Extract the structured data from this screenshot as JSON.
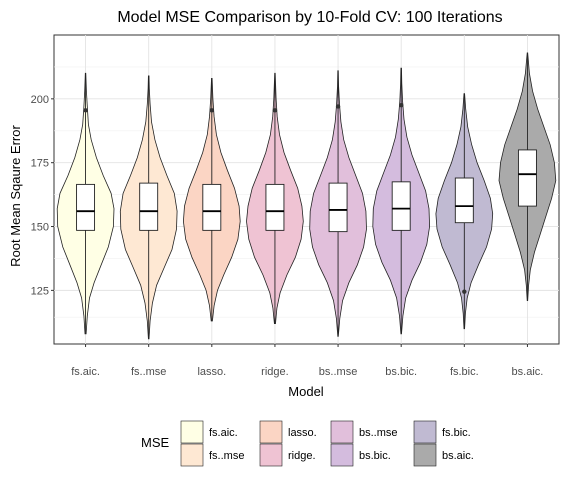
{
  "chart_data": {
    "type": "violin",
    "title": "Model MSE Comparison by 10-Fold CV: 100 Iterations",
    "xlabel": "Model",
    "ylabel": "Root Mean Sqaure Error",
    "ylim": [
      104,
      225
    ],
    "yticks": [
      125,
      150,
      175,
      200
    ],
    "grid": true,
    "legend": {
      "title": "MSE",
      "position": "bottom",
      "columns": 4
    },
    "categories": [
      "fs.aic.",
      "fs..mse",
      "lasso.",
      "ridge.",
      "bs..mse",
      "bs.bic.",
      "fs.bic.",
      "bs.aic."
    ],
    "series": [
      {
        "name": "fs.aic.",
        "color": "#FFFFE5",
        "min": 108,
        "q1": 148.5,
        "median": 156,
        "q3": 166.5,
        "max": 210,
        "outliers": [
          195.5
        ],
        "density": [
          [
            108,
            0.02
          ],
          [
            115,
            0.06
          ],
          [
            122,
            0.14
          ],
          [
            128,
            0.3
          ],
          [
            135,
            0.55
          ],
          [
            142,
            0.8
          ],
          [
            150,
            0.98
          ],
          [
            157,
            1.0
          ],
          [
            163,
            0.9
          ],
          [
            170,
            0.62
          ],
          [
            177,
            0.38
          ],
          [
            184,
            0.2
          ],
          [
            190,
            0.1
          ],
          [
            197,
            0.06
          ],
          [
            203,
            0.03
          ],
          [
            210,
            0.01
          ]
        ]
      },
      {
        "name": "fs..mse",
        "color": "#FEE8D3",
        "min": 106,
        "q1": 148.5,
        "median": 156,
        "q3": 167,
        "max": 209,
        "outliers": [],
        "density": [
          [
            106,
            0.01
          ],
          [
            113,
            0.05
          ],
          [
            120,
            0.13
          ],
          [
            127,
            0.28
          ],
          [
            134,
            0.55
          ],
          [
            141,
            0.82
          ],
          [
            149,
            0.98
          ],
          [
            156,
            1.0
          ],
          [
            163,
            0.9
          ],
          [
            170,
            0.64
          ],
          [
            177,
            0.4
          ],
          [
            184,
            0.22
          ],
          [
            191,
            0.1
          ],
          [
            198,
            0.05
          ],
          [
            204,
            0.02
          ],
          [
            209,
            0.01
          ]
        ]
      },
      {
        "name": "lasso.",
        "color": "#FBD5C4",
        "min": 113,
        "q1": 148.5,
        "median": 156,
        "q3": 166.5,
        "max": 208,
        "outliers": [
          195.5
        ],
        "density": [
          [
            113,
            0.02
          ],
          [
            119,
            0.08
          ],
          [
            125,
            0.2
          ],
          [
            131,
            0.42
          ],
          [
            138,
            0.7
          ],
          [
            145,
            0.92
          ],
          [
            152,
            1.0
          ],
          [
            158,
            0.96
          ],
          [
            165,
            0.8
          ],
          [
            172,
            0.55
          ],
          [
            179,
            0.32
          ],
          [
            186,
            0.16
          ],
          [
            193,
            0.08
          ],
          [
            200,
            0.04
          ],
          [
            208,
            0.01
          ]
        ]
      },
      {
        "name": "ridge.",
        "color": "#EFC3D3",
        "min": 112,
        "q1": 148.5,
        "median": 156,
        "q3": 166.5,
        "max": 210,
        "outliers": [
          195.5
        ],
        "density": [
          [
            112,
            0.02
          ],
          [
            118,
            0.07
          ],
          [
            124,
            0.18
          ],
          [
            131,
            0.42
          ],
          [
            138,
            0.72
          ],
          [
            145,
            0.92
          ],
          [
            152,
            1.0
          ],
          [
            158,
            0.95
          ],
          [
            165,
            0.8
          ],
          [
            172,
            0.55
          ],
          [
            179,
            0.32
          ],
          [
            186,
            0.16
          ],
          [
            193,
            0.08
          ],
          [
            200,
            0.04
          ],
          [
            210,
            0.01
          ]
        ]
      },
      {
        "name": "bs..mse",
        "color": "#E1BFDB",
        "min": 107,
        "q1": 148,
        "median": 156.5,
        "q3": 167,
        "max": 211,
        "outliers": [
          197
        ],
        "density": [
          [
            107,
            0.01
          ],
          [
            114,
            0.06
          ],
          [
            121,
            0.16
          ],
          [
            128,
            0.38
          ],
          [
            135,
            0.68
          ],
          [
            142,
            0.9
          ],
          [
            149,
            1.0
          ],
          [
            156,
            0.98
          ],
          [
            163,
            0.86
          ],
          [
            170,
            0.62
          ],
          [
            177,
            0.38
          ],
          [
            184,
            0.2
          ],
          [
            191,
            0.1
          ],
          [
            198,
            0.05
          ],
          [
            205,
            0.02
          ],
          [
            211,
            0.01
          ]
        ]
      },
      {
        "name": "bs.bic.",
        "color": "#D4BCDE",
        "min": 108,
        "q1": 148.5,
        "median": 157,
        "q3": 167.5,
        "max": 212,
        "outliers": [
          197.5
        ],
        "density": [
          [
            108,
            0.01
          ],
          [
            115,
            0.06
          ],
          [
            122,
            0.16
          ],
          [
            129,
            0.38
          ],
          [
            136,
            0.68
          ],
          [
            143,
            0.9
          ],
          [
            150,
            1.0
          ],
          [
            157,
            0.98
          ],
          [
            164,
            0.86
          ],
          [
            171,
            0.62
          ],
          [
            178,
            0.38
          ],
          [
            185,
            0.2
          ],
          [
            192,
            0.1
          ],
          [
            199,
            0.05
          ],
          [
            206,
            0.02
          ],
          [
            212,
            0.01
          ]
        ]
      },
      {
        "name": "fs.bic.",
        "color": "#C0BAD2",
        "min": 110,
        "q1": 151.5,
        "median": 158,
        "q3": 169,
        "max": 202,
        "outliers": [
          124.5
        ],
        "density": [
          [
            110,
            0.01
          ],
          [
            116,
            0.04
          ],
          [
            122,
            0.1
          ],
          [
            128,
            0.24
          ],
          [
            135,
            0.5
          ],
          [
            142,
            0.78
          ],
          [
            149,
            0.96
          ],
          [
            155,
            1.0
          ],
          [
            161,
            0.92
          ],
          [
            168,
            0.7
          ],
          [
            175,
            0.45
          ],
          [
            182,
            0.26
          ],
          [
            189,
            0.12
          ],
          [
            196,
            0.05
          ],
          [
            202,
            0.01
          ]
        ]
      },
      {
        "name": "bs.aic.",
        "color": "#AAAAAA",
        "min": 121,
        "q1": 158,
        "median": 170.5,
        "q3": 180,
        "max": 218,
        "outliers": [],
        "density": [
          [
            121,
            0.01
          ],
          [
            127,
            0.04
          ],
          [
            133,
            0.1
          ],
          [
            140,
            0.25
          ],
          [
            147,
            0.45
          ],
          [
            154,
            0.65
          ],
          [
            161,
            0.85
          ],
          [
            168,
            1.0
          ],
          [
            175,
            0.95
          ],
          [
            182,
            0.8
          ],
          [
            189,
            0.58
          ],
          [
            196,
            0.36
          ],
          [
            203,
            0.18
          ],
          [
            210,
            0.07
          ],
          [
            218,
            0.01
          ]
        ]
      }
    ]
  }
}
